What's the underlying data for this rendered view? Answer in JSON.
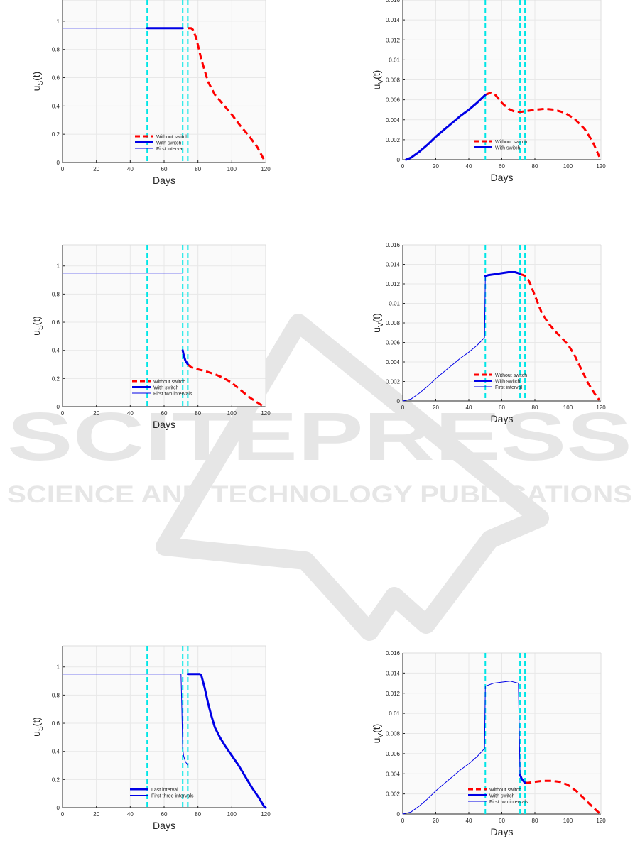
{
  "watermark": {
    "title": "SCITEPRESS",
    "subtitle": "SCIENCE AND TECHNOLOGY PUBLICATIONS",
    "color": "#e6e6e6"
  },
  "colors": {
    "without_switch": "#ff0000",
    "with_switch": "#0000e6",
    "thin": "#0000e6",
    "vlines": "#00e6e6",
    "plot_bg": "#fafafa",
    "grid": "#e8e8e8"
  },
  "chart_data": [
    {
      "type": "line",
      "ylabel": "u_S(t)",
      "ylabel_main": "u",
      "ylabel_sub": "S",
      "ylabel_tail": "(t)",
      "xlabel": "Days",
      "xlim": [
        0,
        120
      ],
      "ylim": [
        0,
        1.15
      ],
      "xticks": [
        "0",
        "20",
        "40",
        "60",
        "80",
        "100",
        "120"
      ],
      "yticks": [
        "0",
        "0.2",
        "0.4",
        "0.6",
        "0.8",
        "1"
      ],
      "vlines": [
        50,
        71,
        74
      ],
      "grid": true,
      "legend_position": "bottom-center",
      "series": [
        {
          "name": "Without switch",
          "style": "dashed",
          "x": [
            74,
            76,
            77,
            79,
            82,
            86,
            90,
            95,
            100,
            105,
            110,
            115,
            119
          ],
          "y": [
            0.95,
            0.95,
            0.94,
            0.88,
            0.73,
            0.57,
            0.48,
            0.41,
            0.34,
            0.26,
            0.19,
            0.11,
            0.02
          ]
        },
        {
          "name": "With switch",
          "style": "thick",
          "x": [
            50,
            52,
            56,
            60,
            64,
            68,
            71
          ],
          "y": [
            0.95,
            0.95,
            0.95,
            0.95,
            0.95,
            0.95,
            0.95
          ]
        },
        {
          "name": "First interval",
          "style": "thin",
          "x": [
            0,
            10,
            20,
            30,
            40,
            50
          ],
          "y": [
            0.95,
            0.95,
            0.95,
            0.95,
            0.95,
            0.95
          ]
        }
      ]
    },
    {
      "type": "line",
      "ylabel": "u_V(t)",
      "ylabel_main": "u",
      "ylabel_sub": "V",
      "ylabel_tail": "(t)",
      "xlabel": "Days",
      "xlim": [
        0,
        120
      ],
      "ylim": [
        0,
        0.016
      ],
      "xticks": [
        "0",
        "20",
        "40",
        "60",
        "80",
        "100",
        "120"
      ],
      "yticks": [
        "0",
        "0.002",
        "0.004",
        "0.006",
        "0.008",
        "0.01",
        "0.012",
        "0.014",
        "0.016"
      ],
      "vlines": [
        50,
        71,
        74
      ],
      "grid": true,
      "legend_position": "bottom-center",
      "series": [
        {
          "name": "Without switch",
          "style": "dashed",
          "x": [
            50,
            53,
            56,
            60,
            64,
            68,
            72,
            76,
            80,
            86,
            92,
            98,
            104,
            110,
            115,
            119
          ],
          "y": [
            0.0065,
            0.0067,
            0.0065,
            0.0057,
            0.0051,
            0.0048,
            0.0048,
            0.0049,
            0.005,
            0.0051,
            0.005,
            0.0047,
            0.0041,
            0.0031,
            0.0018,
            0.0003
          ]
        },
        {
          "name": "With switch",
          "style": "thick",
          "x": [
            2,
            5,
            10,
            15,
            20,
            25,
            30,
            35,
            40,
            45,
            50
          ],
          "y": [
            0.0,
            0.0002,
            0.0008,
            0.0015,
            0.0023,
            0.003,
            0.0037,
            0.0044,
            0.005,
            0.0057,
            0.0065
          ]
        }
      ]
    },
    {
      "type": "line",
      "ylabel": "u_S(t)",
      "ylabel_main": "u",
      "ylabel_sub": "S",
      "ylabel_tail": "(t)",
      "xlabel": "Days",
      "xlim": [
        0,
        120
      ],
      "ylim": [
        0,
        1.15
      ],
      "xticks": [
        "0",
        "20",
        "40",
        "60",
        "80",
        "100",
        "120"
      ],
      "yticks": [
        "0",
        "0.2",
        "0.4",
        "0.6",
        "0.8",
        "1"
      ],
      "vlines": [
        50,
        71,
        74
      ],
      "grid": true,
      "legend_position": "bottom-center",
      "series": [
        {
          "name": "Without switch",
          "style": "dashed",
          "x": [
            74,
            76,
            80,
            85,
            90,
            95,
            100,
            105,
            110,
            115,
            119
          ],
          "y": [
            0.3,
            0.28,
            0.265,
            0.25,
            0.23,
            0.205,
            0.17,
            0.12,
            0.07,
            0.03,
            0.0
          ]
        },
        {
          "name": "With switch",
          "style": "thick",
          "x": [
            71,
            71.5,
            72,
            72.5,
            73,
            73.5,
            74
          ],
          "y": [
            0.4,
            0.37,
            0.35,
            0.33,
            0.32,
            0.31,
            0.3
          ]
        },
        {
          "name": "First two intervals",
          "style": "thin",
          "x": [
            0,
            20,
            40,
            60,
            71
          ],
          "y": [
            0.95,
            0.95,
            0.95,
            0.95,
            0.95
          ]
        }
      ]
    },
    {
      "type": "line",
      "ylabel": "u_V(t)",
      "ylabel_main": "u",
      "ylabel_sub": "V",
      "ylabel_tail": "(t)",
      "xlabel": "Days",
      "xlim": [
        0,
        120
      ],
      "ylim": [
        0,
        0.016
      ],
      "xticks": [
        "0",
        "20",
        "40",
        "60",
        "80",
        "100",
        "120"
      ],
      "yticks": [
        "0",
        "0.002",
        "0.004",
        "0.006",
        "0.008",
        "0.01",
        "0.012",
        "0.014",
        "0.016"
      ],
      "vlines": [
        50,
        71,
        74
      ],
      "grid": true,
      "legend_position": "bottom-center",
      "series": [
        {
          "name": "Without switch",
          "style": "dashed",
          "x": [
            71,
            73,
            75,
            77,
            80,
            84,
            88,
            92,
            96,
            100,
            104,
            108,
            112,
            116,
            119
          ],
          "y": [
            0.013,
            0.0129,
            0.0127,
            0.0121,
            0.0108,
            0.0091,
            0.008,
            0.0072,
            0.0065,
            0.0058,
            0.0047,
            0.0033,
            0.0019,
            0.0008,
            0.0001
          ]
        },
        {
          "name": "With switch",
          "style": "thick",
          "x": [
            50,
            52,
            56,
            60,
            64,
            66,
            68,
            70,
            71
          ],
          "y": [
            0.0128,
            0.0129,
            0.013,
            0.0131,
            0.0132,
            0.0132,
            0.0132,
            0.0131,
            0.013
          ]
        },
        {
          "name": "First interval",
          "style": "thin",
          "x": [
            0,
            5,
            10,
            15,
            20,
            25,
            30,
            35,
            40,
            45,
            49.5,
            50
          ],
          "y": [
            0.0,
            0.0002,
            0.0008,
            0.0015,
            0.0023,
            0.003,
            0.0037,
            0.0044,
            0.005,
            0.0057,
            0.0065,
            0.0128
          ]
        }
      ]
    },
    {
      "type": "line",
      "ylabel": "u_S(t)",
      "ylabel_main": "u",
      "ylabel_sub": "S",
      "ylabel_tail": "(t)",
      "xlabel": "Days",
      "xlim": [
        0,
        120
      ],
      "ylim": [
        0,
        1.15
      ],
      "xticks": [
        "0",
        "20",
        "40",
        "60",
        "80",
        "100",
        "120"
      ],
      "yticks": [
        "0",
        "0.2",
        "0.4",
        "0.6",
        "0.8",
        "1"
      ],
      "vlines": [
        50,
        71,
        74
      ],
      "grid": true,
      "legend_position": "bottom-center",
      "series": [
        {
          "name": "Last interval",
          "style": "thick",
          "x": [
            74,
            76,
            78,
            80,
            81,
            82,
            84,
            86,
            88,
            90,
            93,
            96,
            100,
            104,
            108,
            112,
            116,
            119,
            120
          ],
          "y": [
            0.95,
            0.95,
            0.95,
            0.95,
            0.95,
            0.94,
            0.85,
            0.74,
            0.65,
            0.57,
            0.5,
            0.44,
            0.37,
            0.3,
            0.22,
            0.14,
            0.07,
            0.01,
            0.0
          ]
        },
        {
          "name": "First three intervals",
          "style": "thin",
          "x": [
            0,
            20,
            40,
            60,
            70,
            70.5,
            71,
            71.5,
            72,
            72.5,
            73,
            73.5,
            74
          ],
          "y": [
            0.95,
            0.95,
            0.95,
            0.95,
            0.95,
            0.7,
            0.42,
            0.37,
            0.35,
            0.33,
            0.32,
            0.31,
            0.3
          ]
        }
      ]
    },
    {
      "type": "line",
      "ylabel": "u_V(t)",
      "ylabel_main": "u",
      "ylabel_sub": "V",
      "ylabel_tail": "(t)",
      "xlabel": "Days",
      "xlim": [
        0,
        120
      ],
      "ylim": [
        0,
        0.016
      ],
      "xticks": [
        "0",
        "20",
        "40",
        "60",
        "80",
        "100",
        "120"
      ],
      "yticks": [
        "0",
        "0.002",
        "0.004",
        "0.006",
        "0.008",
        "0.01",
        "0.012",
        "0.014",
        "0.016"
      ],
      "vlines": [
        50,
        71,
        74
      ],
      "grid": true,
      "legend_position": "bottom-center",
      "series": [
        {
          "name": "Without switch",
          "style": "dashed",
          "x": [
            74,
            76,
            80,
            85,
            90,
            95,
            100,
            105,
            110,
            115,
            119
          ],
          "y": [
            0.0031,
            0.0031,
            0.0032,
            0.0033,
            0.0033,
            0.0032,
            0.0029,
            0.0023,
            0.0015,
            0.0007,
            0.0001
          ]
        },
        {
          "name": "With switch",
          "style": "thick",
          "x": [
            71,
            72,
            73,
            74
          ],
          "y": [
            0.0039,
            0.0035,
            0.0033,
            0.0031
          ]
        },
        {
          "name": "First two intervals",
          "style": "thin",
          "x": [
            0,
            5,
            10,
            15,
            20,
            25,
            30,
            35,
            40,
            45,
            49.5,
            50,
            55,
            60,
            65,
            70,
            71
          ],
          "y": [
            0.0,
            0.0002,
            0.0008,
            0.0015,
            0.0023,
            0.003,
            0.0037,
            0.0044,
            0.005,
            0.0057,
            0.0065,
            0.0127,
            0.013,
            0.0131,
            0.0132,
            0.013,
            0.0039
          ]
        }
      ]
    }
  ]
}
